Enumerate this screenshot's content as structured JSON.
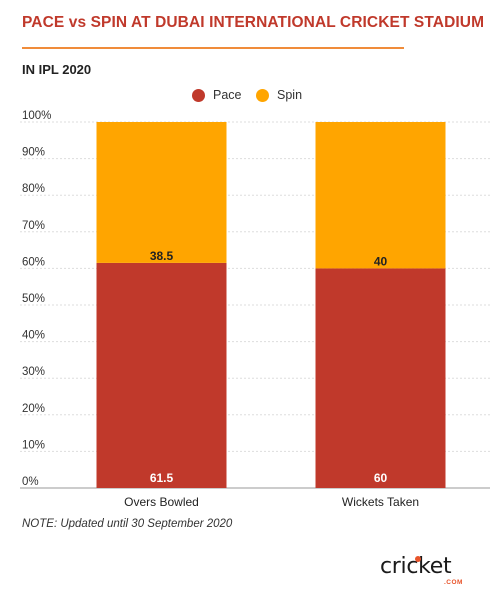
{
  "header": {
    "title": "PACE vs SPIN AT DUBAI INTERNATIONAL CRICKET STADIUM",
    "subtitle": "IN IPL 2020"
  },
  "note": "NOTE: Updated until 30 September 2020",
  "logo": {
    "word": "cricket",
    "suffix": ".COM"
  },
  "colors": {
    "pace": "#c0392b",
    "spin": "#ffa500",
    "title": "#c0392b",
    "rule": "#f08c3a"
  },
  "chart_data": {
    "type": "bar",
    "stacked": true,
    "percent": true,
    "categories": [
      "Overs Bowled",
      "Wickets Taken"
    ],
    "series": [
      {
        "name": "Pace",
        "values": [
          61.5,
          60
        ],
        "color": "#c0392b"
      },
      {
        "name": "Spin",
        "values": [
          38.5,
          40
        ],
        "color": "#ffa500"
      }
    ],
    "yticks": [
      "0%",
      "10%",
      "20%",
      "30%",
      "40%",
      "50%",
      "60%",
      "70%",
      "80%",
      "90%",
      "100%"
    ],
    "ylim": [
      0,
      100
    ],
    "grid": true,
    "legend_position": "top-center"
  }
}
